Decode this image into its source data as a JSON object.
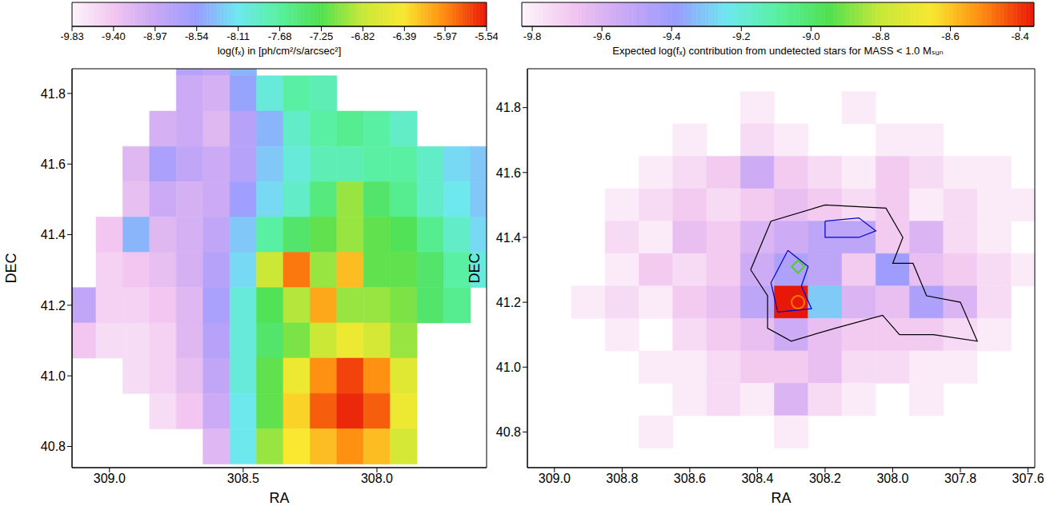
{
  "chart_data": [
    {
      "type": "heatmap",
      "xlabel": "RA",
      "ylabel": "DEC",
      "xlim": [
        309.14,
        307.59
      ],
      "ylim": [
        40.74,
        41.87
      ],
      "xticks": [
        {
          "value": 309,
          "label": "309.0"
        },
        308.5,
        {
          "value": 308,
          "label": "308.0"
        }
      ],
      "yticks": [
        40.8,
        {
          "value": 41,
          "label": "41.0"
        },
        41.2,
        41.4,
        41.6,
        41.8
      ],
      "colorbar_label": "log(fₓ) in [ph/cm²/s/arcsec²]",
      "colorbar_range": [
        -9.83,
        -5.54
      ],
      "colorbar_ticks": [
        -9.83,
        {
          "value": -9.4,
          "label": "-9.40"
        },
        -8.97,
        -8.54,
        -8.11,
        -7.68,
        -7.25,
        -6.82,
        -6.39,
        -5.97,
        -5.54
      ],
      "cells": {
        "x": [
          309.1,
          309.0,
          308.9,
          308.8,
          308.7,
          308.6,
          308.5,
          308.4,
          308.3,
          308.2,
          308.1,
          308.0,
          307.9,
          307.8,
          307.7,
          307.6
        ],
        "y": [
          41.9,
          41.8,
          41.7,
          41.6,
          41.5,
          41.4,
          41.3,
          41.2,
          41.1,
          41.0,
          40.9,
          40.8
        ],
        "z": [
          [
            null,
            null,
            null,
            null,
            -8.8,
            -8.9,
            -8.4,
            null,
            null,
            null,
            null,
            null,
            null,
            null,
            null,
            null
          ],
          [
            null,
            null,
            null,
            null,
            -9.0,
            -9.1,
            -8.5,
            -8.0,
            -7.7,
            -7.8,
            null,
            null,
            null,
            null,
            null,
            null
          ],
          [
            null,
            null,
            null,
            -9.1,
            -9.0,
            -9.2,
            -8.8,
            -8.4,
            -7.9,
            -7.7,
            -7.6,
            -7.7,
            -7.9,
            null,
            null,
            null
          ],
          [
            null,
            null,
            -9.2,
            -8.7,
            -8.9,
            -9.0,
            -8.8,
            -8.3,
            -8.0,
            -7.8,
            -7.8,
            -7.7,
            -7.7,
            -7.9,
            -8.2,
            -8.3
          ],
          [
            null,
            null,
            -9.3,
            -9.0,
            -9.1,
            -9.0,
            -8.6,
            -8.2,
            -7.9,
            -7.5,
            -7.0,
            -7.4,
            -7.6,
            -7.9,
            -8.1,
            -8.3
          ],
          [
            null,
            -9.4,
            -8.4,
            -9.2,
            -9.1,
            -8.9,
            -8.3,
            -7.7,
            -7.4,
            -7.2,
            -7.0,
            -7.2,
            -7.3,
            -7.6,
            -7.9,
            -8.2
          ],
          [
            null,
            -9.5,
            -9.4,
            -9.3,
            -9.1,
            -8.8,
            -8.2,
            -6.8,
            -5.9,
            -7.0,
            -6.2,
            -7.2,
            -7.2,
            -7.4,
            -7.7,
            -8.0
          ],
          [
            -8.9,
            -9.5,
            -9.5,
            -9.4,
            -9.2,
            -8.7,
            -8.0,
            -7.3,
            -6.9,
            -6.1,
            -7.0,
            -7.0,
            -7.1,
            -7.4,
            -7.6,
            null
          ],
          [
            -9.4,
            -9.6,
            -9.6,
            -9.5,
            -9.2,
            -8.8,
            -8.0,
            -7.4,
            -7.1,
            -6.8,
            -6.5,
            -6.7,
            -7.0,
            null,
            null,
            null
          ],
          [
            null,
            null,
            -9.6,
            -9.5,
            -9.3,
            -8.9,
            -8.0,
            -7.2,
            -6.5,
            -6.0,
            -5.7,
            -6.0,
            -6.6,
            null,
            null,
            null
          ],
          [
            null,
            null,
            null,
            -9.6,
            -9.4,
            -9.0,
            -8.1,
            -7.2,
            -6.3,
            -5.8,
            -5.6,
            -5.8,
            -6.5,
            null,
            null,
            null
          ],
          [
            null,
            null,
            null,
            null,
            null,
            -9.2,
            -8.1,
            -7.0,
            -6.4,
            -6.2,
            -6.0,
            -6.2,
            -6.7,
            null,
            null,
            null
          ]
        ]
      }
    },
    {
      "type": "heatmap",
      "xlabel": "RA",
      "ylabel": "DEC",
      "xlim": [
        309.08,
        307.58
      ],
      "ylim": [
        40.69,
        41.92
      ],
      "xticks": [
        {
          "value": 309,
          "label": "309.0"
        },
        308.8,
        308.6,
        308.4,
        308.2,
        {
          "value": 308,
          "label": "308.0"
        },
        307.8,
        307.6
      ],
      "yticks": [
        40.8,
        {
          "value": 41,
          "label": "41.0"
        },
        41.2,
        41.4,
        41.6,
        41.8
      ],
      "colorbar_label": "Expected log(fₓ) contribution from undetected stars for MASS < 1.0 Mₛᵤₙ",
      "colorbar_range": [
        -9.83,
        -8.36
      ],
      "colorbar_ticks": [
        -9.8,
        -9.6,
        -9.4,
        -9.2,
        {
          "value": -9,
          "label": "-9.0"
        },
        -8.8,
        -8.6,
        -8.4
      ],
      "cells": {
        "x": [
          308.9,
          308.8,
          308.7,
          308.6,
          308.5,
          308.4,
          308.3,
          308.2,
          308.1,
          308.0,
          307.9,
          307.8,
          307.7,
          307.6
        ],
        "y": [
          41.8,
          41.7,
          41.6,
          41.5,
          41.4,
          41.3,
          41.2,
          41.1,
          41.0,
          40.9,
          40.8
        ],
        "z": [
          [
            null,
            null,
            null,
            null,
            null,
            -9.8,
            null,
            null,
            -9.8,
            null,
            null,
            null,
            null,
            null
          ],
          [
            null,
            null,
            null,
            -9.8,
            null,
            -9.75,
            -9.8,
            null,
            null,
            -9.8,
            -9.8,
            null,
            null,
            null
          ],
          [
            null,
            null,
            -9.8,
            -9.75,
            -9.7,
            -9.55,
            -9.7,
            -9.75,
            -9.8,
            -9.7,
            -9.75,
            -9.8,
            -9.8,
            null
          ],
          [
            null,
            -9.8,
            -9.75,
            -9.7,
            -9.75,
            -9.7,
            -9.65,
            -9.7,
            -9.75,
            -9.7,
            -9.8,
            -9.75,
            -9.8,
            -9.8
          ],
          [
            null,
            -9.75,
            -9.8,
            -9.65,
            -9.7,
            -9.6,
            -9.55,
            -9.5,
            -9.5,
            -9.7,
            -9.6,
            -9.75,
            -9.8,
            null
          ],
          [
            null,
            -9.8,
            -9.7,
            -9.75,
            -9.7,
            -9.55,
            -9.45,
            -9.5,
            -9.7,
            -9.4,
            -9.65,
            -9.7,
            -9.75,
            -9.8
          ],
          [
            -9.8,
            -9.75,
            -9.8,
            -9.7,
            -9.65,
            -9.5,
            -8.35,
            -9.3,
            -9.6,
            -9.65,
            -9.45,
            -9.6,
            -9.75,
            null
          ],
          [
            null,
            -9.8,
            null,
            -9.75,
            -9.7,
            -9.65,
            -9.55,
            -9.65,
            -9.7,
            -9.7,
            -9.7,
            -9.75,
            -9.8,
            null
          ],
          [
            null,
            null,
            -9.8,
            -9.8,
            -9.75,
            -9.7,
            -9.7,
            -9.65,
            -9.75,
            -9.75,
            -9.8,
            -9.8,
            null,
            null
          ],
          [
            null,
            null,
            null,
            -9.8,
            -9.75,
            -9.8,
            -9.6,
            -9.75,
            -9.8,
            null,
            -9.8,
            null,
            null,
            null
          ],
          [
            null,
            null,
            -9.8,
            null,
            null,
            null,
            -9.8,
            null,
            null,
            null,
            null,
            null,
            null,
            null
          ]
        ]
      },
      "contours": [
        {
          "color": "#000000",
          "points": [
            [
              308.42,
              41.3
            ],
            [
              308.36,
              41.45
            ],
            [
              308.2,
              41.5
            ],
            [
              308.02,
              41.49
            ],
            [
              307.97,
              41.4
            ],
            [
              308.0,
              41.32
            ],
            [
              307.94,
              41.32
            ],
            [
              307.9,
              41.22
            ],
            [
              307.8,
              41.2
            ],
            [
              307.75,
              41.08
            ],
            [
              307.88,
              41.1
            ],
            [
              307.98,
              41.1
            ],
            [
              308.03,
              41.16
            ],
            [
              308.17,
              41.12
            ],
            [
              308.3,
              41.08
            ],
            [
              308.37,
              41.12
            ],
            [
              308.37,
              41.22
            ],
            [
              308.42,
              41.3
            ]
          ]
        },
        {
          "color": "#0000cc",
          "points": [
            [
              308.31,
              41.36
            ],
            [
              308.25,
              41.31
            ],
            [
              308.27,
              41.25
            ],
            [
              308.24,
              41.18
            ],
            [
              308.34,
              41.17
            ],
            [
              308.36,
              41.26
            ],
            [
              308.31,
              41.36
            ]
          ]
        },
        {
          "color": "#0000cc",
          "points": [
            [
              308.2,
              41.45
            ],
            [
              308.1,
              41.46
            ],
            [
              308.05,
              41.42
            ],
            [
              308.1,
              41.4
            ],
            [
              308.2,
              41.4
            ],
            [
              308.2,
              41.45
            ]
          ]
        }
      ],
      "markers": [
        {
          "x": 308.28,
          "y": 41.31,
          "color": "#55cc22",
          "marker": "diamond"
        },
        {
          "x": 308.28,
          "y": 41.2,
          "color": "#ff7700",
          "marker": "circle"
        }
      ]
    }
  ]
}
